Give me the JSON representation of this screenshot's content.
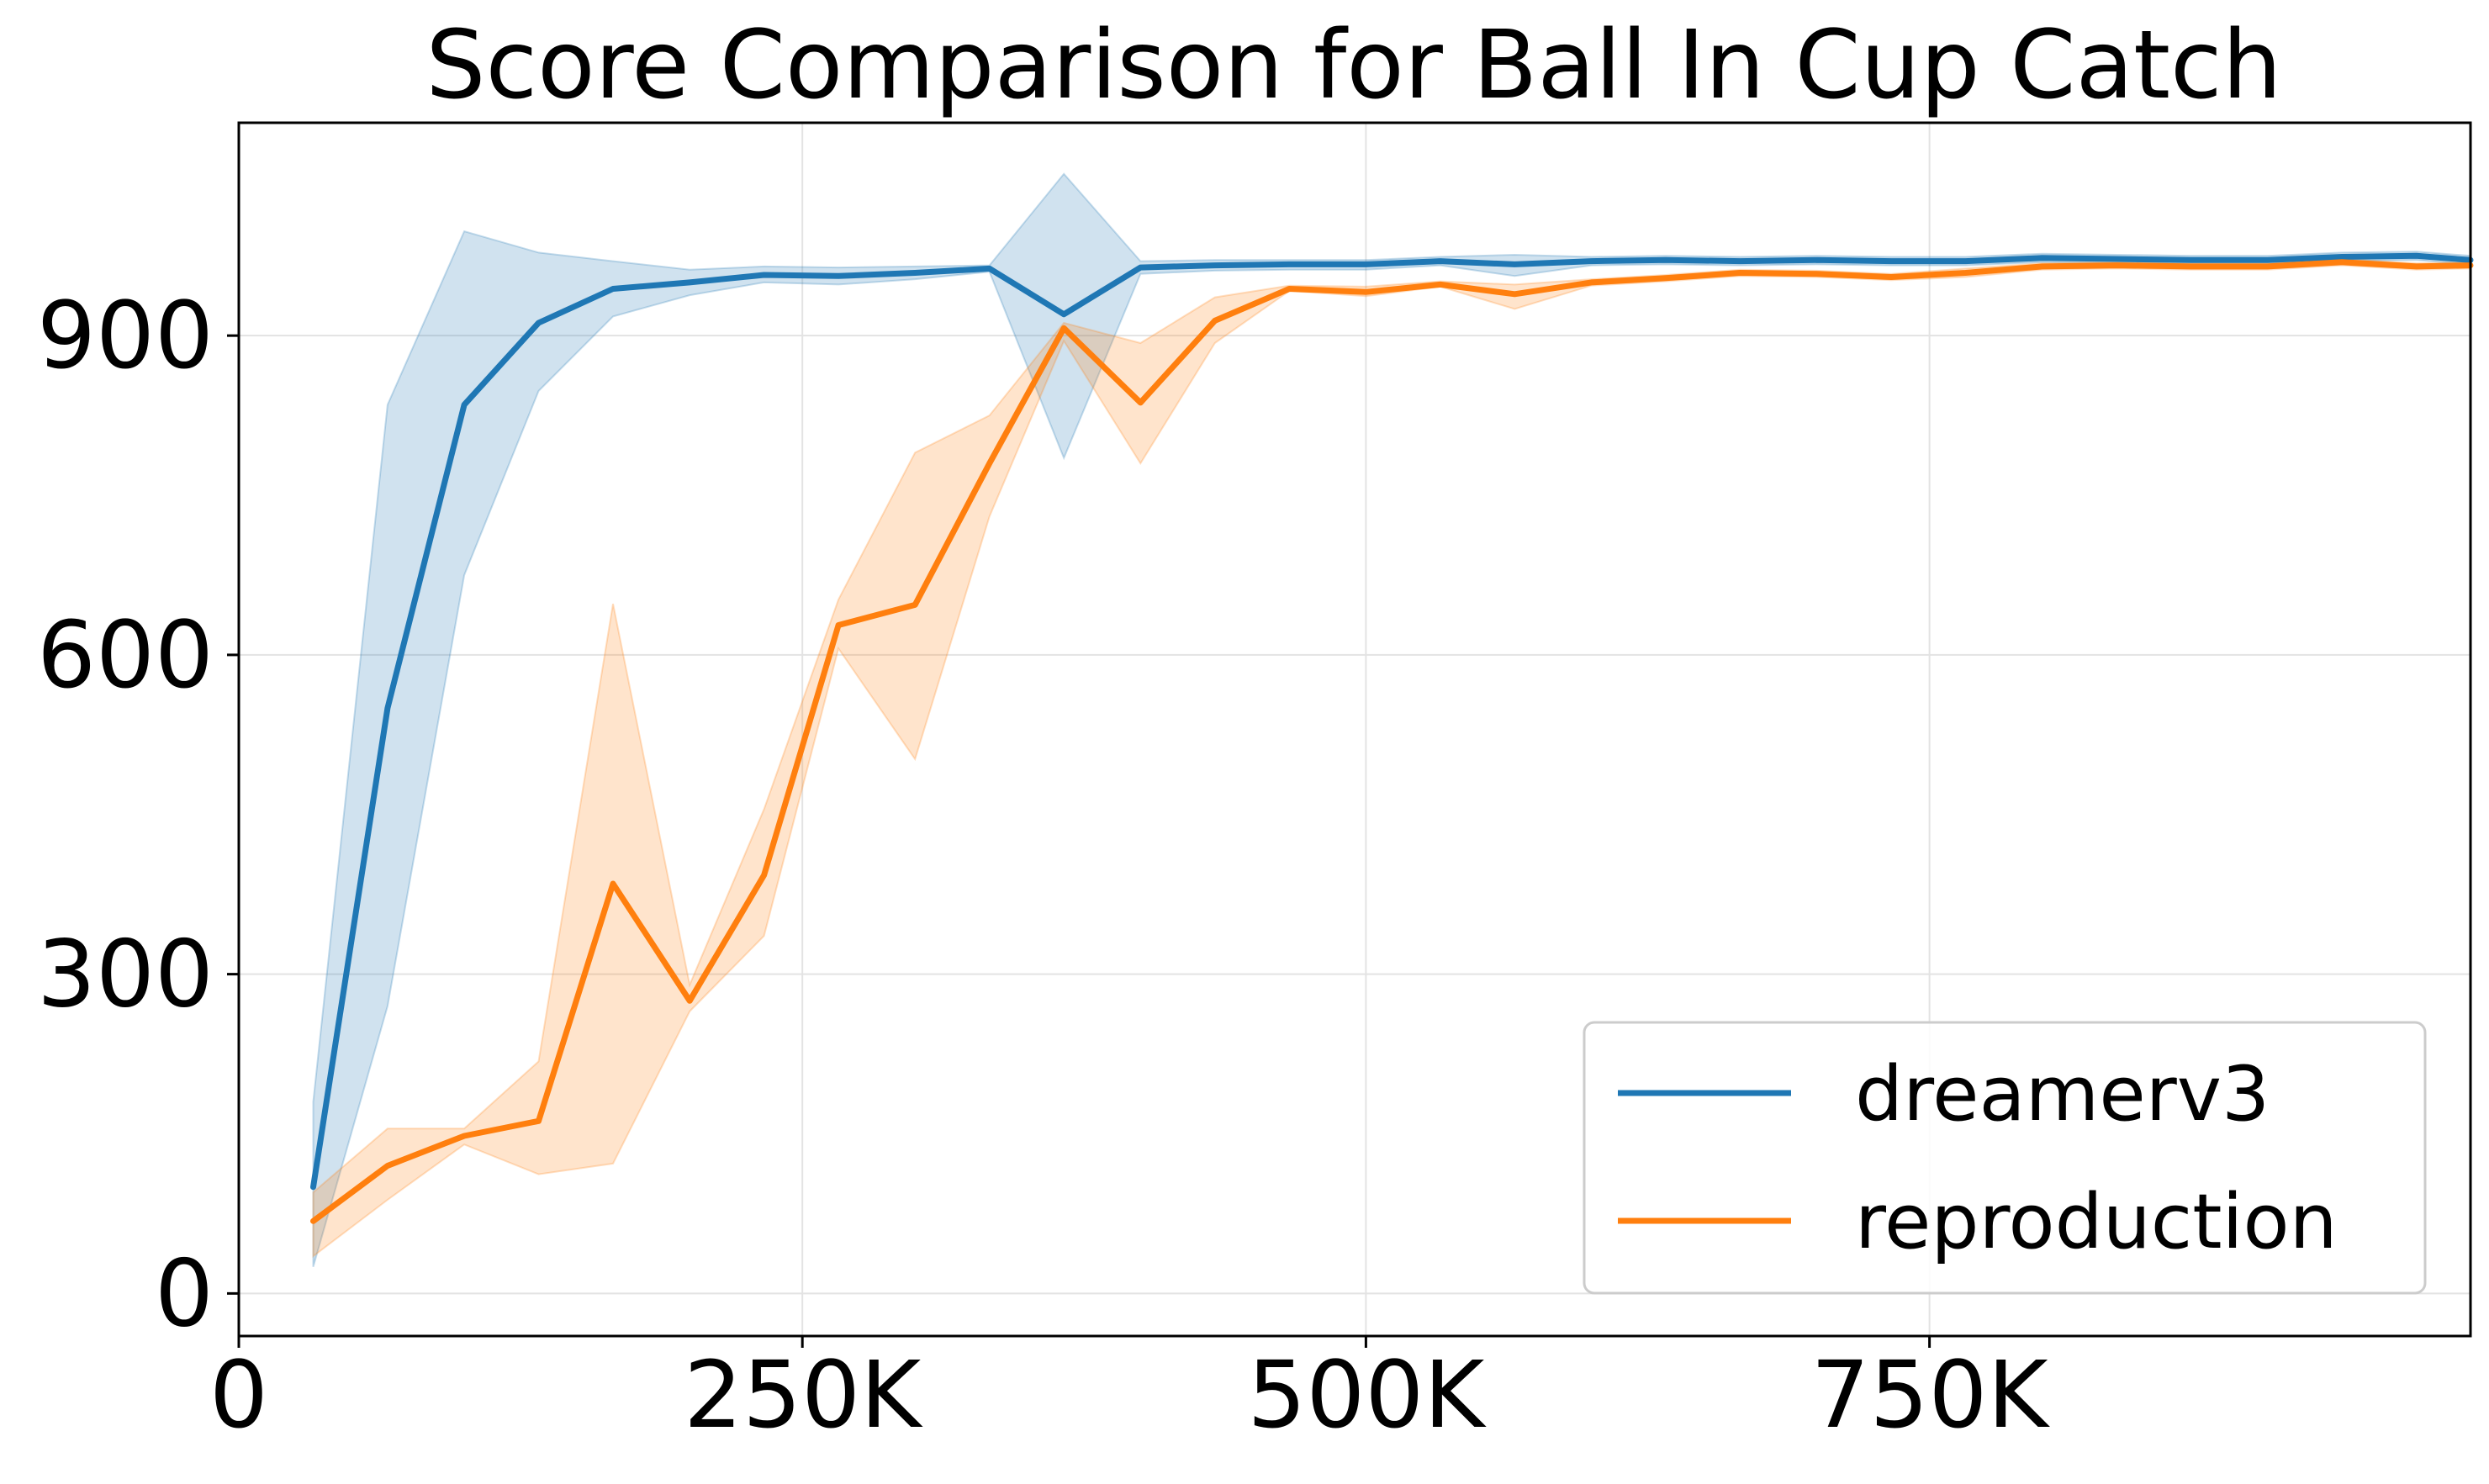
{
  "chart_data": {
    "type": "line",
    "title": "Score Comparison for Ball In Cup Catch",
    "xlabel": "",
    "ylabel": "",
    "xlim": [
      0,
      990000
    ],
    "ylim": [
      -40,
      1100
    ],
    "x_ticks": [
      0,
      250000,
      500000,
      750000
    ],
    "x_tick_labels": [
      "0",
      "250K",
      "500K",
      "750K"
    ],
    "y_ticks": [
      0,
      300,
      600,
      900
    ],
    "y_tick_labels": [
      "0",
      "300",
      "600",
      "900"
    ],
    "grid": true,
    "legend_position": "lower-right",
    "x": [
      33000,
      66000,
      100000,
      133000,
      166000,
      200000,
      233000,
      266000,
      300000,
      333000,
      366000,
      400000,
      433000,
      466000,
      500000,
      533000,
      566000,
      600000,
      633000,
      666000,
      700000,
      733000,
      766000,
      800000,
      833000,
      866000,
      900000,
      933000,
      966000,
      990000
    ],
    "series": [
      {
        "name": "dreamerv3",
        "color": "#1f77b4",
        "values": [
          100,
          550,
          835,
          912,
          944,
          950,
          957,
          956,
          959,
          963,
          920,
          964,
          966,
          967,
          967,
          970,
          967,
          970,
          971,
          970,
          971,
          970,
          970,
          973,
          972,
          971,
          971,
          974,
          975,
          971
        ],
        "lower": [
          25,
          270,
          675,
          848,
          918,
          938,
          950,
          948,
          953,
          960,
          785,
          958,
          961,
          962,
          962,
          966,
          956,
          966,
          967,
          966,
          967,
          966,
          966,
          969,
          968,
          967,
          967,
          970,
          971,
          967
        ],
        "upper": [
          180,
          835,
          998,
          978,
          970,
          962,
          965,
          964,
          965,
          966,
          1052,
          970,
          971,
          971,
          971,
          974,
          976,
          974,
          975,
          974,
          975,
          974,
          974,
          977,
          976,
          975,
          975,
          978,
          979,
          975
        ]
      },
      {
        "name": "reproduction",
        "color": "#ff7f0e",
        "values": [
          68,
          120,
          148,
          162,
          385,
          275,
          393,
          628,
          647,
          780,
          907,
          837,
          914,
          944,
          941,
          948,
          939,
          950,
          954,
          959,
          958,
          955,
          959,
          965,
          966,
          965,
          965,
          969,
          965,
          966
        ],
        "lower": [
          35,
          88,
          140,
          112,
          122,
          265,
          336,
          606,
          502,
          730,
          895,
          780,
          893,
          942,
          937,
          946,
          925,
          947,
          951,
          956,
          955,
          952,
          955,
          962,
          963,
          962,
          962,
          966,
          962,
          963
        ],
        "upper": [
          95,
          155,
          155,
          218,
          648,
          290,
          455,
          652,
          790,
          825,
          912,
          893,
          936,
          947,
          946,
          951,
          948,
          953,
          957,
          962,
          961,
          958,
          963,
          968,
          969,
          968,
          968,
          972,
          968,
          969
        ]
      }
    ]
  }
}
